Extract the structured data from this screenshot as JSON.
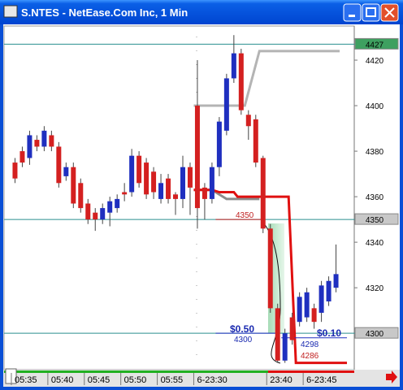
{
  "window_title": "S.NTES - NetEase.Com Inc, 1 Min",
  "chart_data": {
    "type": "candlestick",
    "up_color": "#1f2fbf",
    "down_color": "#d42020",
    "categories": [
      null,
      null,
      null,
      null,
      null,
      null,
      null,
      null,
      null,
      null,
      null,
      null,
      null,
      null,
      null,
      null,
      null,
      null,
      null,
      null,
      null,
      null,
      null,
      null,
      null,
      null,
      null,
      null,
      null,
      null,
      null,
      null,
      null,
      null,
      null,
      null,
      null,
      null,
      null,
      null,
      null,
      null,
      null,
      null,
      null
    ],
    "open": [
      4375,
      4380,
      4377,
      4385,
      4382,
      4387,
      4382,
      4369,
      4373,
      4366,
      4357,
      4353,
      4350,
      4353,
      4355,
      4362,
      4362,
      4378,
      4375,
      4371,
      4359,
      4368,
      4361,
      4359,
      4373,
      4400,
      4364,
      4359,
      4373,
      4389,
      4412,
      4423,
      4396,
      4394,
      4377,
      4346,
      4311,
      4288,
      4307,
      4305,
      4307,
      4311,
      4309,
      4314,
      4320
    ],
    "high": [
      4377,
      4382,
      4389,
      4387,
      4391,
      4389,
      4384,
      4375,
      4375,
      4368,
      4359,
      4355,
      4357,
      4360,
      4361,
      4366,
      4381,
      4380,
      4377,
      4373,
      4370,
      4370,
      4362,
      4378,
      4375,
      4420,
      4366,
      4375,
      4395,
      4414,
      4431,
      4425,
      4398,
      4396,
      4378,
      4348,
      4313,
      4302,
      4309,
      4318,
      4320,
      4313,
      4323,
      4325,
      4339
    ],
    "low": [
      4366,
      4373,
      4374,
      4380,
      4380,
      4380,
      4364,
      4367,
      4355,
      4353,
      4348,
      4345,
      4348,
      4347,
      4353,
      4358,
      4360,
      4364,
      4359,
      4359,
      4357,
      4357,
      4352,
      4355,
      4352,
      4346,
      4350,
      4357,
      4369,
      4387,
      4410,
      4396,
      4385,
      4373,
      4344,
      4309,
      4287,
      4287,
      4295,
      4303,
      4305,
      4302,
      4305,
      4312,
      4318
    ],
    "close": [
      4368,
      4375,
      4387,
      4382,
      4389,
      4382,
      4366,
      4373,
      4357,
      4355,
      4350,
      4350,
      4355,
      4358,
      4359,
      4361,
      4378,
      4366,
      4361,
      4362,
      4366,
      4359,
      4359,
      4373,
      4364,
      4355,
      4359,
      4373,
      4393,
      4412,
      4423,
      4398,
      4391,
      4375,
      4346,
      4311,
      4288,
      4300,
      4297,
      4316,
      4318,
      4305,
      4321,
      4323,
      4326
    ],
    "xlim": [
      -1.5,
      46.5
    ],
    "xticks": [
      {
        "value": -0.5,
        "label": "05:35"
      },
      {
        "value": 4.5,
        "label": "05:40"
      },
      {
        "value": 9.5,
        "label": "05:45"
      },
      {
        "value": 14.5,
        "label": "05:50"
      },
      {
        "value": 19.5,
        "label": "05:55"
      },
      {
        "value": 24.5,
        "label": "6-23:30"
      },
      {
        "value": 34.5,
        "label": "23:40"
      },
      {
        "value": 39.5,
        "label": "6-23:45"
      }
    ],
    "ylim": [
      4284,
      4435
    ],
    "yticks": [
      4320,
      4340,
      4360,
      4380,
      4400,
      4420
    ],
    "levels": [
      4427,
      4350,
      4300
    ],
    "level_color": "#2a8f8f",
    "lines": [
      {
        "color": "#b4b4b4",
        "x": [
          24.5,
          31.5,
          33.5,
          44.5
        ],
        "values": [
          4400,
          4400,
          4424,
          4424
        ]
      },
      {
        "color": "#8c8c8c",
        "x": [
          24.5,
          27,
          29,
          33.5
        ],
        "values": [
          4363,
          4363,
          4359,
          4359
        ]
      },
      {
        "color": "#e01010",
        "x": [
          24.5,
          27,
          28,
          30,
          30.5,
          37.5,
          38.5,
          45.5
        ],
        "values": [
          4363,
          4363,
          4362,
          4362,
          4360,
          4360,
          4287,
          4287
        ]
      },
      {
        "color": "#c02020",
        "x": [
          27.5,
          34
        ],
        "values": [
          4350,
          4350
        ]
      },
      {
        "color": "#2030c0",
        "x": [
          27.5,
          36
        ],
        "values": [
          4300,
          4300
        ]
      },
      {
        "color": "#2030c0",
        "x": [
          36.5,
          45.5
        ],
        "values": [
          4298,
          4298
        ]
      }
    ],
    "annotations": [
      "4350",
      "$0.50",
      "4300",
      "$0.10",
      "4298",
      "4286"
    ]
  }
}
